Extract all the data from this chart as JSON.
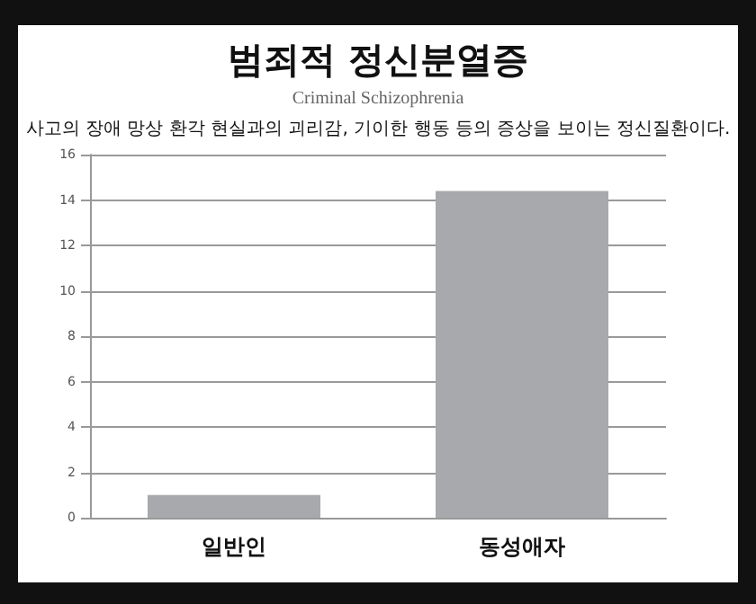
{
  "chart_data": {
    "type": "bar",
    "title": "범죄적 정신분열증",
    "subtitle": "Criminal Schizophrenia",
    "annotations": [
      "사고의 장애 망상 환각 현실과의 괴리감, 기이한 행동 등의 증상을 보이는 정신질환이다."
    ],
    "categories": [
      "일반인",
      "동성애자"
    ],
    "values": [
      1,
      14.4
    ],
    "color": "#a7a9ac",
    "ylim": [
      0,
      16
    ],
    "yticks": [
      0,
      2,
      4,
      6,
      8,
      10,
      12,
      14,
      16
    ],
    "grid": "y"
  }
}
